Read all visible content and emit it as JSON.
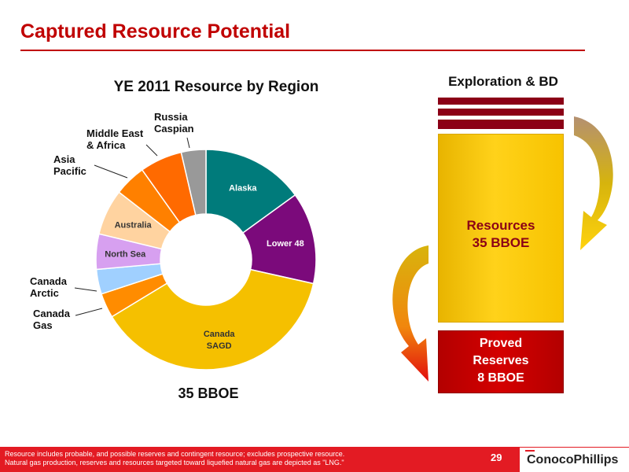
{
  "slide": {
    "title": "Captured Resource Potential",
    "page_number": "29",
    "footnote_line1": "Resource includes probable, and possible reserves and contingent resource; excludes prospective resource.",
    "footnote_line2": "Natural gas production, reserves and resources targeted toward liquefied natural gas are depicted as \"LNG.\"",
    "logo_text": "ConocoPhillips",
    "accent_color": "#c00000"
  },
  "chart_data": {
    "type": "pie",
    "title": "YE 2011 Resource by Region",
    "total_label": "35 BBOE",
    "categories": [
      "Alaska",
      "Lower 48",
      "Canada SAGD",
      "Canada Gas",
      "Canada Arctic",
      "North Sea",
      "Australia",
      "Asia Pacific",
      "Middle East & Africa",
      "Russia Caspian"
    ],
    "label_text": [
      "Alaska",
      "Lower 48",
      "Canada",
      "SAGD",
      "North Sea",
      "Australia",
      "Canada",
      "Arctic",
      "Canada",
      "Gas",
      "Asia",
      "Pacific",
      "Middle East",
      "& Africa",
      "Russia",
      "Caspian"
    ],
    "values": [
      14.5,
      13.0,
      36.5,
      3.5,
      3.5,
      5.0,
      6.5,
      4.5,
      6.0,
      3.5
    ],
    "colors": [
      "#007b7b",
      "#7b0a7b",
      "#f5c000",
      "#ff8c00",
      "#a0d0ff",
      "#d7a0f0",
      "#ffd3a0",
      "#ff8000",
      "#ff6a00",
      "#999999"
    ],
    "label_colors": [
      "#ffffff",
      "#ffffff",
      "#333333",
      "#111111",
      "#111111",
      "#333333",
      "#333333",
      "#111111",
      "#111111",
      "#111111"
    ]
  },
  "flow": {
    "exploration_label": "Exploration & BD",
    "resources_label": "Resources",
    "resources_value": "35 BBOE",
    "proved_label1": "Proved",
    "proved_label2": "Reserves",
    "proved_value": "8 BBOE"
  }
}
